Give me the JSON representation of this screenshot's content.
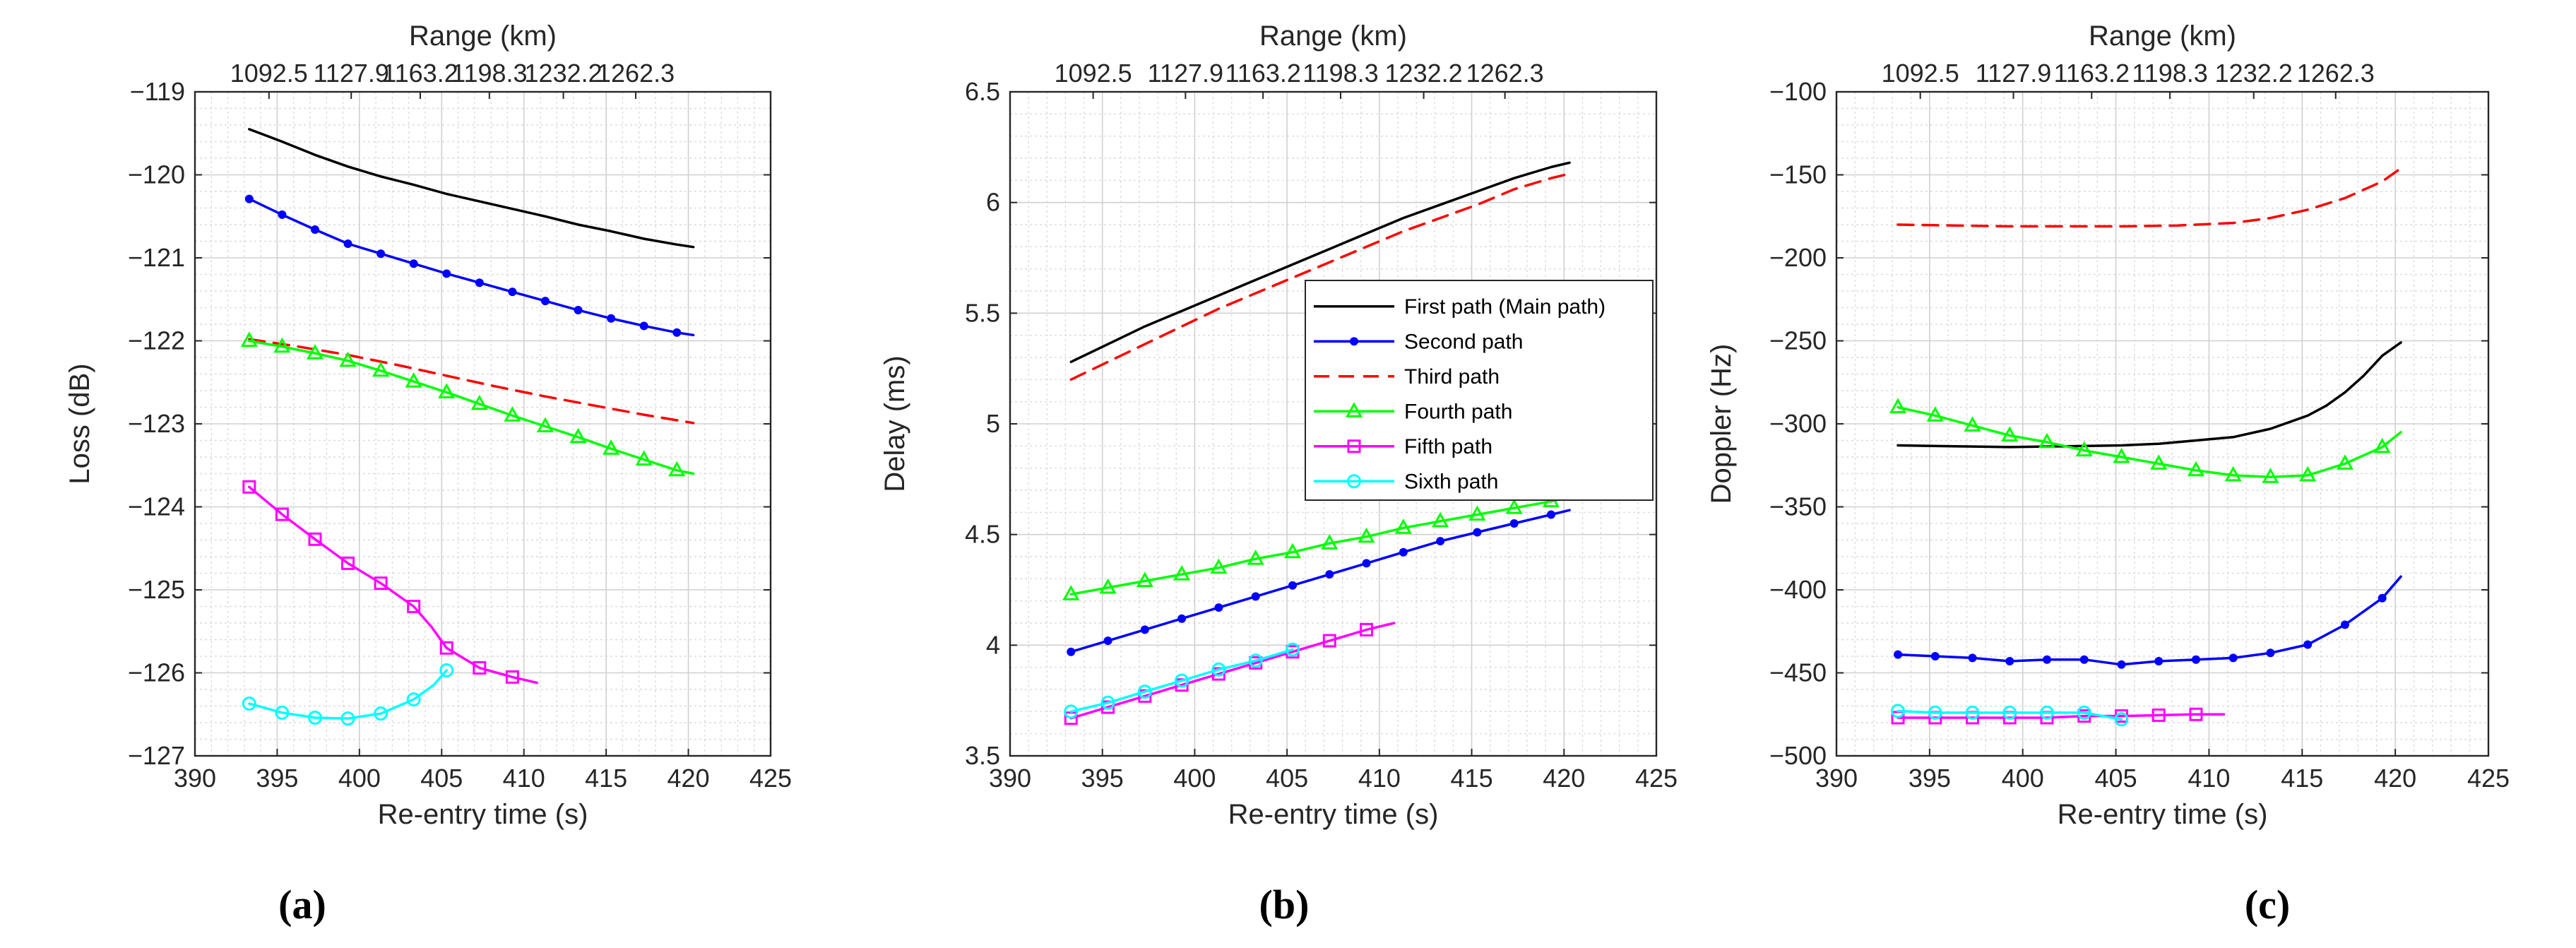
{
  "figure": {
    "captions": [
      "(a)",
      "(b)",
      "(c)"
    ]
  },
  "styles": {
    "first": {
      "color": "#000000",
      "marker": "none",
      "dash": ""
    },
    "second": {
      "color": "#0000ff",
      "marker": "dot",
      "dash": ""
    },
    "third": {
      "color": "#ff0000",
      "marker": "none",
      "dash": "22,13"
    },
    "fourth": {
      "color": "#00ff00",
      "marker": "triangle",
      "dash": ""
    },
    "fifth": {
      "color": "#ff00ff",
      "marker": "square",
      "dash": ""
    },
    "sixth": {
      "color": "#00ffff",
      "marker": "circle",
      "dash": ""
    }
  },
  "legend": {
    "panel": 1,
    "items": [
      {
        "key": "first",
        "label": "First path (Main path)"
      },
      {
        "key": "second",
        "label": "Second path"
      },
      {
        "key": "third",
        "label": "Third path"
      },
      {
        "key": "fourth",
        "label": "Fourth path"
      },
      {
        "key": "fifth",
        "label": "Fifth path"
      },
      {
        "key": "sixth",
        "label": "Sixth path"
      }
    ]
  },
  "chart_data": [
    {
      "type": "line",
      "caption": "(a)",
      "xlabel": "Re-entry time (s)",
      "ylabel": "Loss (dB)",
      "top_label": "Range (km)",
      "xlim": [
        390,
        425
      ],
      "ylim": [
        -127,
        -119
      ],
      "xticks": [
        390,
        395,
        400,
        405,
        410,
        415,
        420,
        425
      ],
      "xtick_labels": [
        "390",
        "395",
        "400",
        "405",
        "410",
        "415",
        "420",
        "425"
      ],
      "yticks": [
        -127,
        -126,
        -125,
        -124,
        -123,
        -122,
        -121,
        -120,
        -119
      ],
      "ytick_labels": [
        "−127",
        "−126",
        "−125",
        "−124",
        "−123",
        "−122",
        "−121",
        "−120",
        "−119"
      ],
      "top_ticks": [
        394.5,
        399.5,
        403.7,
        407.9,
        412.4,
        416.8
      ],
      "top_tick_labels": [
        "1092.5",
        "1127.9",
        "1163.2",
        "1198.3",
        "1232.2",
        "1262.3"
      ],
      "grid": true,
      "series": [
        {
          "name": "First path (Main path)",
          "key": "first",
          "x": [
            393.3,
            395.3,
            397.3,
            399.3,
            401.3,
            403.3,
            405.3,
            407.3,
            409.3,
            411.3,
            413.3,
            415.3,
            417.3,
            419.3,
            420.3
          ],
          "y": [
            -119.45,
            -119.6,
            -119.76,
            -119.9,
            -120.02,
            -120.12,
            -120.23,
            -120.32,
            -120.41,
            -120.5,
            -120.6,
            -120.68,
            -120.77,
            -120.84,
            -120.87
          ]
        },
        {
          "name": "Second path",
          "key": "second",
          "x": [
            393.3,
            395.3,
            397.3,
            399.3,
            401.3,
            403.3,
            405.3,
            407.3,
            409.3,
            411.3,
            413.3,
            415.3,
            417.3,
            419.3,
            420.3
          ],
          "y": [
            -120.29,
            -120.48,
            -120.66,
            -120.83,
            -120.95,
            -121.07,
            -121.19,
            -121.3,
            -121.41,
            -121.52,
            -121.63,
            -121.73,
            -121.82,
            -121.9,
            -121.93
          ]
        },
        {
          "name": "Third path",
          "key": "third",
          "x": [
            393.3,
            396.3,
            399.3,
            402.3,
            405.3,
            408.3,
            411.3,
            414.3,
            417.3,
            420.3
          ],
          "y": [
            -121.98,
            -122.07,
            -122.17,
            -122.29,
            -122.42,
            -122.55,
            -122.67,
            -122.78,
            -122.89,
            -122.99
          ]
        },
        {
          "name": "Fourth path",
          "key": "fourth",
          "x": [
            393.3,
            395.3,
            397.3,
            399.3,
            401.3,
            403.3,
            405.3,
            407.3,
            409.3,
            411.3,
            413.3,
            415.3,
            417.3,
            419.3,
            420.3
          ],
          "y": [
            -122.0,
            -122.07,
            -122.15,
            -122.24,
            -122.36,
            -122.49,
            -122.62,
            -122.76,
            -122.9,
            -123.03,
            -123.16,
            -123.3,
            -123.43,
            -123.56,
            -123.6
          ]
        },
        {
          "name": "Fifth path",
          "key": "fifth",
          "x": [
            393.3,
            395.3,
            397.3,
            399.3,
            401.3,
            403.3,
            404.4,
            405.3,
            407.3,
            409.3,
            410.8
          ],
          "y": [
            -123.76,
            -124.09,
            -124.39,
            -124.68,
            -124.92,
            -125.2,
            -125.45,
            -125.7,
            -125.94,
            -126.05,
            -126.12
          ]
        },
        {
          "name": "Sixth path",
          "key": "sixth",
          "x": [
            393.3,
            395.3,
            397.3,
            399.3,
            401.3,
            403.3,
            404.5,
            405.3
          ],
          "y": [
            -126.37,
            -126.48,
            -126.54,
            -126.55,
            -126.49,
            -126.32,
            -126.15,
            -125.97
          ]
        }
      ]
    },
    {
      "type": "line",
      "caption": "(b)",
      "xlabel": "Re-entry time (s)",
      "ylabel": "Delay (ms)",
      "top_label": "Range (km)",
      "xlim": [
        390,
        425
      ],
      "ylim": [
        3.5,
        6.5
      ],
      "xticks": [
        390,
        395,
        400,
        405,
        410,
        415,
        420,
        425
      ],
      "xtick_labels": [
        "390",
        "395",
        "400",
        "405",
        "410",
        "415",
        "420",
        "425"
      ],
      "yticks": [
        3.5,
        4,
        4.5,
        5,
        5.5,
        6,
        6.5
      ],
      "ytick_labels": [
        "3.5",
        "4",
        "4.5",
        "5",
        "5.5",
        "6",
        "6.5"
      ],
      "top_ticks": [
        394.5,
        399.5,
        403.7,
        407.9,
        412.4,
        416.8
      ],
      "top_tick_labels": [
        "1092.5",
        "1127.9",
        "1163.2",
        "1198.3",
        "1232.2",
        "1262.3"
      ],
      "grid": true,
      "series": [
        {
          "name": "First path (Main path)",
          "key": "first",
          "x": [
            393.3,
            395.3,
            397.3,
            399.3,
            401.3,
            403.3,
            405.3,
            407.3,
            409.3,
            411.3,
            413.3,
            415.3,
            417.3,
            419.3,
            420.3
          ],
          "y": [
            5.28,
            5.36,
            5.44,
            5.51,
            5.58,
            5.65,
            5.72,
            5.79,
            5.86,
            5.93,
            5.99,
            6.05,
            6.11,
            6.16,
            6.18
          ]
        },
        {
          "name": "Third path",
          "key": "third",
          "x": [
            393.3,
            395.3,
            397.3,
            399.3,
            401.3,
            403.3,
            405.3,
            407.3,
            409.3,
            411.3,
            413.3,
            415.3,
            417.3,
            419.3,
            420.3
          ],
          "y": [
            5.2,
            5.28,
            5.36,
            5.44,
            5.52,
            5.59,
            5.66,
            5.73,
            5.8,
            5.87,
            5.93,
            5.99,
            6.06,
            6.11,
            6.13
          ]
        },
        {
          "name": "Second path",
          "key": "second",
          "x": [
            393.3,
            395.3,
            397.3,
            399.3,
            401.3,
            403.3,
            405.3,
            407.3,
            409.3,
            411.3,
            413.3,
            415.3,
            417.3,
            419.3,
            420.3
          ],
          "y": [
            3.97,
            4.02,
            4.07,
            4.12,
            4.17,
            4.22,
            4.27,
            4.32,
            4.37,
            4.42,
            4.47,
            4.51,
            4.55,
            4.59,
            4.61
          ]
        },
        {
          "name": "Fourth path",
          "key": "fourth",
          "x": [
            393.3,
            395.3,
            397.3,
            399.3,
            401.3,
            403.3,
            405.3,
            407.3,
            409.3,
            411.3,
            413.3,
            415.3,
            417.3,
            419.3,
            420.3
          ],
          "y": [
            4.23,
            4.26,
            4.29,
            4.32,
            4.35,
            4.39,
            4.42,
            4.46,
            4.49,
            4.53,
            4.56,
            4.59,
            4.62,
            4.65,
            4.67
          ]
        },
        {
          "name": "Fifth path",
          "key": "fifth",
          "x": [
            393.3,
            395.3,
            397.3,
            399.3,
            401.3,
            403.3,
            405.3,
            407.3,
            409.3,
            410.8
          ],
          "y": [
            3.67,
            3.72,
            3.77,
            3.82,
            3.87,
            3.92,
            3.97,
            4.02,
            4.07,
            4.1
          ]
        },
        {
          "name": "Sixth path",
          "key": "sixth",
          "x": [
            393.3,
            395.3,
            397.3,
            399.3,
            401.3,
            403.3,
            405.3
          ],
          "y": [
            3.7,
            3.74,
            3.79,
            3.84,
            3.89,
            3.93,
            3.98
          ]
        }
      ]
    },
    {
      "type": "line",
      "caption": "(c)",
      "xlabel": "Re-entry time (s)",
      "ylabel": "Doppler (Hz)",
      "top_label": "Range (km)",
      "xlim": [
        390,
        425
      ],
      "ylim": [
        -500,
        -100
      ],
      "xticks": [
        390,
        395,
        400,
        405,
        410,
        415,
        420,
        425
      ],
      "xtick_labels": [
        "390",
        "395",
        "400",
        "405",
        "410",
        "415",
        "420",
        "425"
      ],
      "yticks": [
        -500,
        -450,
        -400,
        -350,
        -300,
        -250,
        -200,
        -150,
        -100
      ],
      "ytick_labels": [
        "−500",
        "−450",
        "−400",
        "−350",
        "−300",
        "−250",
        "−200",
        "−150",
        "−100"
      ],
      "top_ticks": [
        394.5,
        399.5,
        403.7,
        407.9,
        412.4,
        416.8
      ],
      "top_tick_labels": [
        "1092.5",
        "1127.9",
        "1163.2",
        "1198.3",
        "1232.2",
        "1262.3"
      ],
      "grid": true,
      "series": [
        {
          "name": "Third path",
          "key": "third",
          "x": [
            393.3,
            396.3,
            399.3,
            402.3,
            405.3,
            408.3,
            411.3,
            413.3,
            415.3,
            417.3,
            419.3,
            420.3
          ],
          "y": [
            -180,
            -180.5,
            -181,
            -181,
            -181,
            -180.5,
            -179,
            -176,
            -171,
            -164,
            -154,
            -146
          ]
        },
        {
          "name": "First path (Main path)",
          "key": "first",
          "x": [
            393.3,
            396.3,
            399.3,
            402.3,
            405.3,
            407.3,
            409.3,
            411.3,
            413.3,
            415.3,
            416.3,
            417.3,
            418.3,
            419.3,
            420.3
          ],
          "y": [
            -313,
            -313.5,
            -314,
            -313.5,
            -313,
            -312,
            -310,
            -308,
            -303,
            -295,
            -289,
            -281,
            -271,
            -259,
            -251
          ]
        },
        {
          "name": "Fourth path",
          "key": "fourth",
          "x": [
            393.3,
            395.3,
            397.3,
            399.3,
            401.3,
            403.3,
            405.3,
            407.3,
            409.3,
            411.3,
            413.3,
            415.3,
            417.3,
            419.3,
            420.3
          ],
          "y": [
            -290,
            -295,
            -301,
            -307,
            -311,
            -316,
            -320,
            -324,
            -328,
            -331,
            -332,
            -331,
            -324,
            -314,
            -305
          ]
        },
        {
          "name": "Second path",
          "key": "second",
          "x": [
            393.3,
            395.3,
            397.3,
            399.3,
            401.3,
            403.3,
            405.3,
            407.3,
            409.3,
            411.3,
            413.3,
            415.3,
            417.3,
            419.3,
            420.3
          ],
          "y": [
            -439,
            -440,
            -441,
            -443,
            -442,
            -442,
            -445,
            -443,
            -442,
            -441,
            -438,
            -433,
            -421,
            -405,
            -392
          ]
        },
        {
          "name": "Fifth path",
          "key": "fifth",
          "x": [
            393.3,
            395.3,
            397.3,
            399.3,
            401.3,
            403.3,
            405.3,
            407.3,
            409.3,
            410.8
          ],
          "y": [
            -477,
            -477,
            -477,
            -477,
            -477,
            -476,
            -476,
            -475.5,
            -475,
            -475
          ]
        },
        {
          "name": "Sixth path",
          "key": "sixth",
          "x": [
            393.3,
            395.3,
            397.3,
            399.3,
            401.3,
            403.3,
            405.3
          ],
          "y": [
            -473,
            -474,
            -474,
            -474,
            -474,
            -474,
            -478
          ]
        }
      ]
    }
  ]
}
